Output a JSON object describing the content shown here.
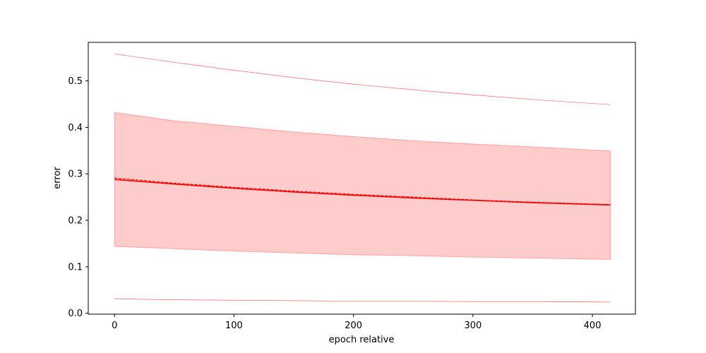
{
  "chart_data": {
    "type": "line",
    "title": "",
    "xlabel": "epoch relative",
    "ylabel": "error",
    "xlim": [
      -22,
      436
    ],
    "ylim": [
      -0.002,
      0.583
    ],
    "xticks": [
      0,
      100,
      200,
      300,
      400
    ],
    "yticks": [
      0.0,
      0.1,
      0.2,
      0.3,
      0.4,
      0.5
    ],
    "x": [
      0,
      50,
      100,
      150,
      200,
      250,
      300,
      350,
      415
    ],
    "series": [
      {
        "role": "mean",
        "style": "solid",
        "color": "#ff0000",
        "values": [
          0.288,
          0.278,
          0.269,
          0.261,
          0.254,
          0.248,
          0.243,
          0.238,
          0.233
        ]
      },
      {
        "role": "median",
        "style": "dashed",
        "color": "#ff0000",
        "values": [
          0.291,
          0.28,
          0.271,
          0.263,
          0.256,
          0.25,
          0.244,
          0.239,
          0.234
        ]
      },
      {
        "role": "band-upper",
        "color": "#ff0000",
        "values": [
          0.432,
          0.414,
          0.402,
          0.39,
          0.38,
          0.371,
          0.364,
          0.358,
          0.349
        ]
      },
      {
        "role": "band-lower",
        "color": "#ff0000",
        "values": [
          0.144,
          0.139,
          0.134,
          0.13,
          0.126,
          0.124,
          0.121,
          0.119,
          0.116
        ]
      },
      {
        "role": "max",
        "style": "thin",
        "color": "#ff0000",
        "values": [
          0.558,
          0.54,
          0.523,
          0.507,
          0.493,
          0.481,
          0.47,
          0.46,
          0.449
        ]
      },
      {
        "role": "min",
        "style": "thin",
        "color": "#ff0000",
        "values": [
          0.031,
          0.029,
          0.028,
          0.027,
          0.026,
          0.026,
          0.025,
          0.025,
          0.024
        ]
      }
    ],
    "band_color": "#ffcccc",
    "grid": false
  }
}
